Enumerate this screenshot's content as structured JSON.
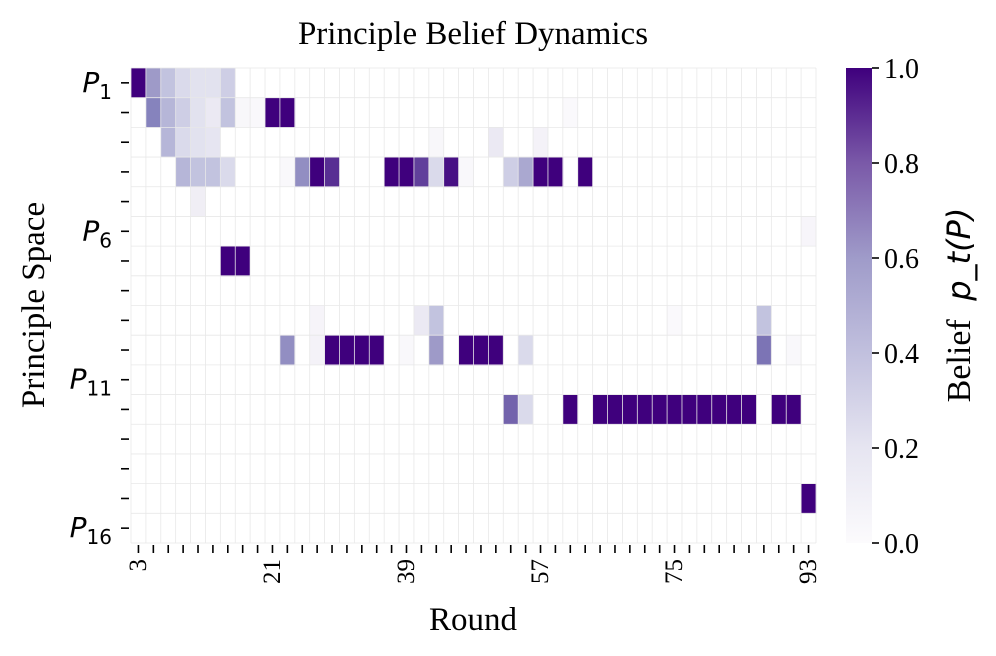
{
  "chart_data": {
    "type": "heatmap",
    "title": "Principle Belief Dynamics",
    "xlabel": "Round",
    "ylabel": "Principle Space",
    "colorbar_label": "Belief",
    "colorbar_label_math": "p_t(P)",
    "colormap": "Purples",
    "color_low": "#fcfbfd",
    "color_high": "#3f007d",
    "vlim": [
      0,
      1
    ],
    "colorbar_ticks": [
      "0.0",
      "0.2",
      "0.4",
      "0.6",
      "0.8",
      "1.0"
    ],
    "x_start": 3,
    "x_count": 46,
    "x_step": 2,
    "x_ticklabels": [
      "3",
      "21",
      "39",
      "57",
      "75",
      "93"
    ],
    "y_count": 16,
    "y_ticklabels": [
      {
        "index": 0,
        "base": "P",
        "sub": "1"
      },
      {
        "index": 5,
        "base": "P",
        "sub": "6"
      },
      {
        "index": 10,
        "base": "P",
        "sub": "11"
      },
      {
        "index": 15,
        "base": "P",
        "sub": "16"
      }
    ],
    "grid": true,
    "nonzero_cells": [
      [
        0,
        0,
        1.0
      ],
      [
        0,
        1,
        0.5
      ],
      [
        0,
        2,
        0.35
      ],
      [
        0,
        3,
        0.25
      ],
      [
        0,
        4,
        0.2
      ],
      [
        0,
        5,
        0.2
      ],
      [
        0,
        6,
        0.3
      ],
      [
        1,
        1,
        0.6
      ],
      [
        1,
        2,
        0.4
      ],
      [
        1,
        3,
        0.3
      ],
      [
        1,
        4,
        0.2
      ],
      [
        1,
        5,
        0.15
      ],
      [
        1,
        6,
        0.35
      ],
      [
        1,
        7,
        0.04
      ],
      [
        1,
        8,
        0.03
      ],
      [
        1,
        9,
        1.0
      ],
      [
        1,
        10,
        1.0
      ],
      [
        1,
        29,
        0.02
      ],
      [
        2,
        2,
        0.4
      ],
      [
        2,
        3,
        0.25
      ],
      [
        2,
        4,
        0.2
      ],
      [
        2,
        5,
        0.18
      ],
      [
        2,
        20,
        0.04
      ],
      [
        2,
        24,
        0.15
      ],
      [
        2,
        27,
        0.08
      ],
      [
        3,
        3,
        0.4
      ],
      [
        3,
        4,
        0.35
      ],
      [
        3,
        5,
        0.35
      ],
      [
        3,
        6,
        0.25
      ],
      [
        3,
        10,
        0.03
      ],
      [
        3,
        11,
        0.55
      ],
      [
        3,
        12,
        1.0
      ],
      [
        3,
        13,
        0.85
      ],
      [
        3,
        17,
        1.0
      ],
      [
        3,
        18,
        1.0
      ],
      [
        3,
        19,
        0.8
      ],
      [
        3,
        20,
        0.25
      ],
      [
        3,
        21,
        0.95
      ],
      [
        3,
        22,
        0.03
      ],
      [
        3,
        25,
        0.3
      ],
      [
        3,
        26,
        0.45
      ],
      [
        3,
        27,
        1.0
      ],
      [
        3,
        28,
        1.0
      ],
      [
        3,
        30,
        1.0
      ],
      [
        4,
        4,
        0.12
      ],
      [
        5,
        45,
        0.05
      ],
      [
        6,
        6,
        1.0
      ],
      [
        6,
        7,
        1.0
      ],
      [
        8,
        12,
        0.06
      ],
      [
        8,
        19,
        0.15
      ],
      [
        8,
        20,
        0.35
      ],
      [
        8,
        36,
        0.02
      ],
      [
        8,
        42,
        0.35
      ],
      [
        9,
        10,
        0.55
      ],
      [
        9,
        12,
        0.08
      ],
      [
        9,
        13,
        1.0
      ],
      [
        9,
        14,
        1.0
      ],
      [
        9,
        15,
        1.0
      ],
      [
        9,
        16,
        1.0
      ],
      [
        9,
        18,
        0.03
      ],
      [
        9,
        20,
        0.5
      ],
      [
        9,
        22,
        1.0
      ],
      [
        9,
        23,
        1.0
      ],
      [
        9,
        24,
        1.0
      ],
      [
        9,
        26,
        0.25
      ],
      [
        9,
        42,
        0.65
      ],
      [
        9,
        44,
        0.03
      ],
      [
        11,
        25,
        0.7
      ],
      [
        11,
        26,
        0.25
      ],
      [
        11,
        29,
        1.0
      ],
      [
        11,
        31,
        1.0
      ],
      [
        11,
        32,
        1.0
      ],
      [
        11,
        33,
        1.0
      ],
      [
        11,
        34,
        1.0
      ],
      [
        11,
        35,
        1.0
      ],
      [
        11,
        36,
        1.0
      ],
      [
        11,
        37,
        1.0
      ],
      [
        11,
        38,
        1.0
      ],
      [
        11,
        39,
        1.0
      ],
      [
        11,
        40,
        1.0
      ],
      [
        11,
        41,
        1.0
      ],
      [
        11,
        43,
        1.0
      ],
      [
        11,
        44,
        1.0
      ],
      [
        14,
        45,
        1.0
      ]
    ]
  }
}
